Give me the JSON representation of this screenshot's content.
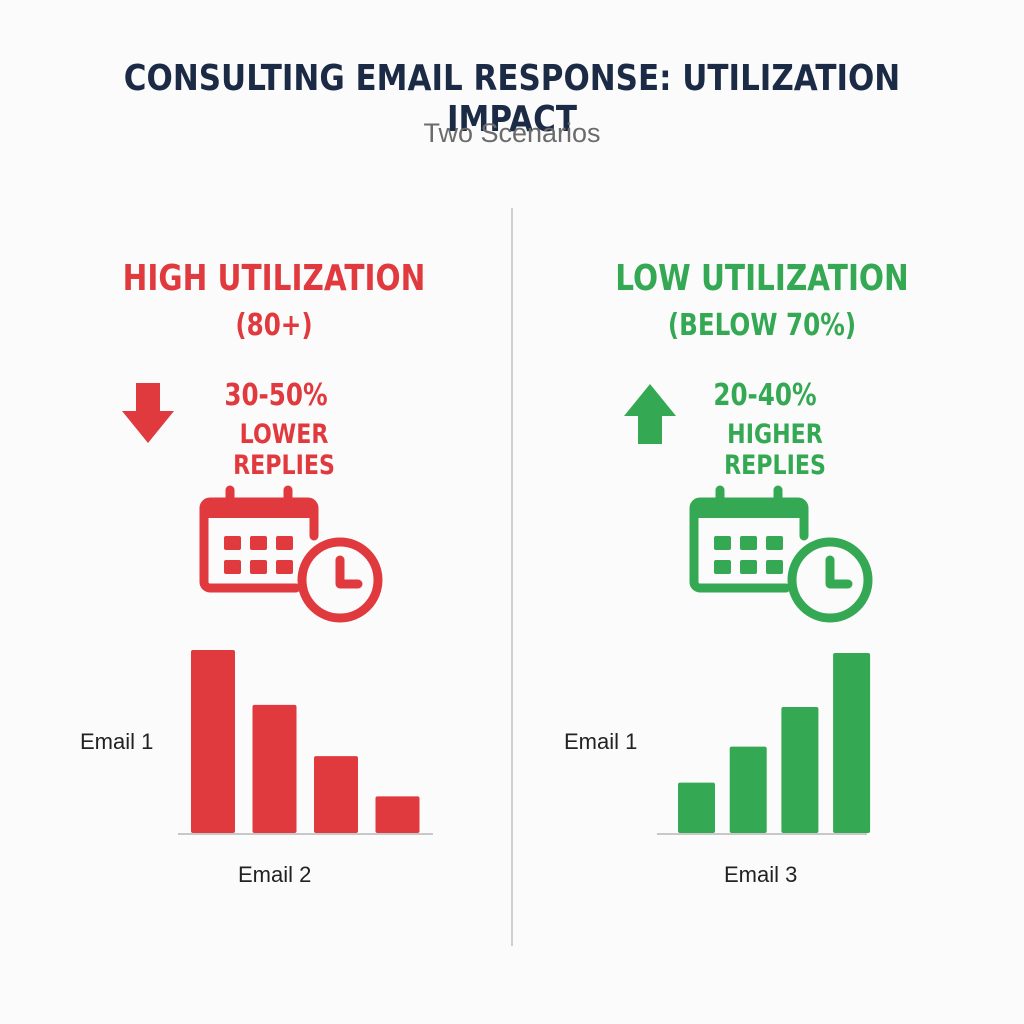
{
  "title": "CONSULTING EMAIL RESPONSE: UTILIZATION IMPACT",
  "subtitle": "Two Scenarios",
  "colors": {
    "high": "#e03a3e",
    "low": "#34a853",
    "title": "#1b2a45"
  },
  "panels": [
    {
      "heading": "HIGH UTILIZATION",
      "subheading": "(80+)",
      "stat_value": "30-50%",
      "stat_label": "LOWER REPLIES",
      "arrow_icon": "arrow-down-icon",
      "icon": "calendar-clock-icon",
      "color": "#e03a3e",
      "y_label": "Email 1",
      "x_label": "Email 2"
    },
    {
      "heading": "LOW UTILIZATION",
      "subheading": "(BELOW 70%)",
      "stat_value": "20-40%",
      "stat_label": "HIGHER REPLIES",
      "arrow_icon": "arrow-up-icon",
      "icon": "calendar-clock-icon",
      "color": "#34a853",
      "y_label": "Email 1",
      "x_label": "Email 3"
    }
  ],
  "chart_data": [
    {
      "type": "bar",
      "values": [
        100,
        70,
        42,
        20
      ],
      "ylim": [
        0,
        100
      ],
      "color": "#e03a3e",
      "axis_labels": [
        "Email 1",
        "Email 2"
      ]
    },
    {
      "type": "bar",
      "values": [
        28,
        48,
        70,
        100
      ],
      "ylim": [
        0,
        100
      ],
      "color": "#34a853",
      "axis_labels": [
        "Email 1",
        "Email 3"
      ]
    }
  ]
}
